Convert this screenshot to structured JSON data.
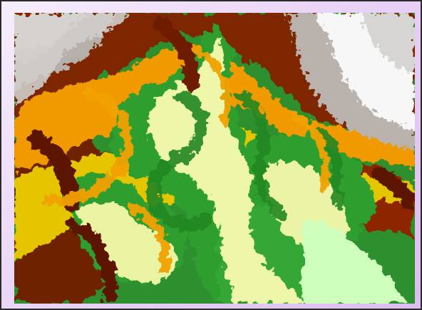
{
  "map": {
    "type": "elevation-relief",
    "palette": {
      "lowland": "#c9fbb7",
      "plain": "#eef7a9",
      "light_green": "#9de36c",
      "green": "#2e9d2e",
      "dark_green": "#1f7a1f",
      "yellow": "#f0d400",
      "orange": "#f6a300",
      "deep_orange": "#d85f00",
      "red_brown": "#9f2a00",
      "dark_brown": "#6a1f00",
      "gray": "#b8b2ad",
      "white": "#f7f7f7"
    },
    "features": [
      "river-network",
      "mountain-ridges",
      "snowy-peaks"
    ]
  }
}
